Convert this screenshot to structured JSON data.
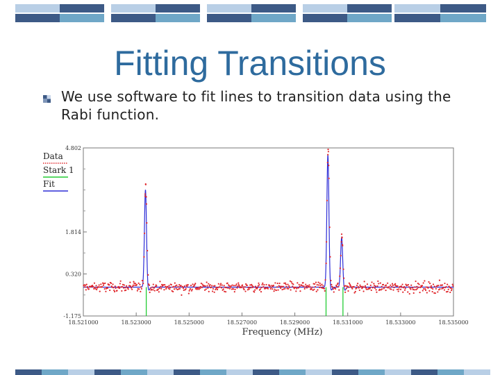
{
  "slide": {
    "title": "Fitting Transitions",
    "bullet": "We use software to fit lines to transition data using the Rabi function."
  },
  "colors": {
    "title": "#2e6b9e",
    "bar_dark": "#3d5a86",
    "bar_mid": "#6fa7c7",
    "bar_light": "#b9cfe6",
    "data": "#e0262b",
    "stark": "#22cc33",
    "fit": "#2b2bd6"
  },
  "chart_data": {
    "type": "scatter",
    "title": "",
    "xlabel": "Frequency (MHz)",
    "ylabel": "",
    "xlim": [
      18.521,
      18.535
    ],
    "ylim": [
      -1.175,
      4.802
    ],
    "x_ticks": [
      "18.521000",
      "18.523000",
      "18.525000",
      "18.527000",
      "18.529000",
      "18.531000",
      "18.533000",
      "18.535000"
    ],
    "y_ticks": [
      "-1.175",
      "0.320",
      "1.814",
      "4.802"
    ],
    "legend": {
      "placement": "top-left",
      "entries": [
        "Data",
        "Stark 1",
        "Fit"
      ]
    },
    "baseline": -0.15,
    "noise_sd": 0.13,
    "series": [
      {
        "name": "Data",
        "kind": "points",
        "peaks": [
          {
            "x": 18.52336,
            "height": 3.55
          },
          {
            "x": 18.53026,
            "height": 4.8
          },
          {
            "x": 18.53078,
            "height": 1.65
          }
        ]
      },
      {
        "name": "Stark 1",
        "kind": "sticks",
        "lines": [
          {
            "x": 18.52338,
            "from": -0.15,
            "to": -1.175
          },
          {
            "x": 18.53018,
            "from": -0.15,
            "to": -1.175
          },
          {
            "x": 18.53082,
            "from": -0.15,
            "to": -1.175
          }
        ]
      },
      {
        "name": "Fit",
        "kind": "line",
        "peaks": [
          {
            "x": 18.52335,
            "height": 3.32
          },
          {
            "x": 18.53025,
            "height": 4.55
          },
          {
            "x": 18.53077,
            "height": 1.62
          }
        ]
      }
    ]
  }
}
